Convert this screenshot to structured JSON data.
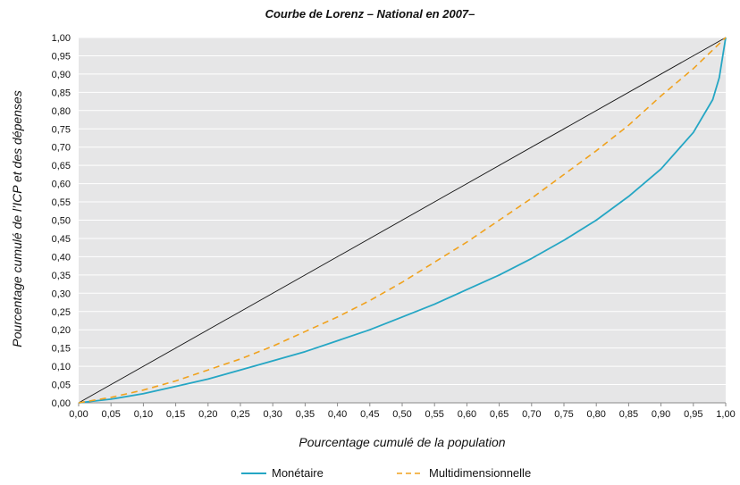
{
  "chart_data": {
    "type": "line",
    "title": "Courbe de Lorenz – National en 2007–",
    "xlabel": "Pourcentage cumulé de la population",
    "ylabel": "Pourcentage cumulé de l’ICP et des dépenses",
    "xlim": [
      0,
      1
    ],
    "ylim": [
      0,
      1
    ],
    "xticks": [
      "0,00",
      "0,05",
      "0,10",
      "0,15",
      "0,20",
      "0,25",
      "0,30",
      "0,35",
      "0,40",
      "0,45",
      "0,50",
      "0,55",
      "0,60",
      "0,65",
      "0,70",
      "0,75",
      "0,80",
      "0,85",
      "0,90",
      "0,95",
      "1,00"
    ],
    "yticks": [
      "0,00",
      "0,05",
      "0,10",
      "0,15",
      "0,20",
      "0,25",
      "0,30",
      "0,35",
      "0,40",
      "0,45",
      "0,50",
      "0,55",
      "0,60",
      "0,65",
      "0,70",
      "0,75",
      "0,80",
      "0,85",
      "0,90",
      "0,95",
      "1,00"
    ],
    "grid": "horizontal",
    "legend_position": "bottom",
    "series": [
      {
        "name": "Monétaire",
        "color": "#25a6c4",
        "style": "solid",
        "x": [
          0,
          0.05,
          0.1,
          0.15,
          0.2,
          0.25,
          0.3,
          0.35,
          0.4,
          0.45,
          0.5,
          0.55,
          0.6,
          0.65,
          0.7,
          0.75,
          0.8,
          0.85,
          0.9,
          0.95,
          0.98,
          0.99,
          1.0
        ],
        "y": [
          0,
          0.01,
          0.025,
          0.045,
          0.065,
          0.09,
          0.115,
          0.14,
          0.17,
          0.2,
          0.235,
          0.27,
          0.31,
          0.35,
          0.395,
          0.445,
          0.5,
          0.565,
          0.64,
          0.74,
          0.83,
          0.89,
          1.0
        ]
      },
      {
        "name": "Multidimensionnelle",
        "color": "#f0a21e",
        "style": "dashed",
        "x": [
          0,
          0.05,
          0.1,
          0.15,
          0.2,
          0.25,
          0.3,
          0.35,
          0.4,
          0.45,
          0.5,
          0.55,
          0.6,
          0.65,
          0.7,
          0.75,
          0.8,
          0.85,
          0.9,
          0.95,
          1.0
        ],
        "y": [
          0,
          0.015,
          0.035,
          0.06,
          0.09,
          0.12,
          0.155,
          0.195,
          0.235,
          0.28,
          0.33,
          0.385,
          0.44,
          0.5,
          0.56,
          0.625,
          0.69,
          0.76,
          0.84,
          0.915,
          1.0
        ]
      }
    ],
    "reference_line": {
      "color": "#111111",
      "x": [
        0,
        1
      ],
      "y": [
        0,
        1
      ]
    }
  }
}
